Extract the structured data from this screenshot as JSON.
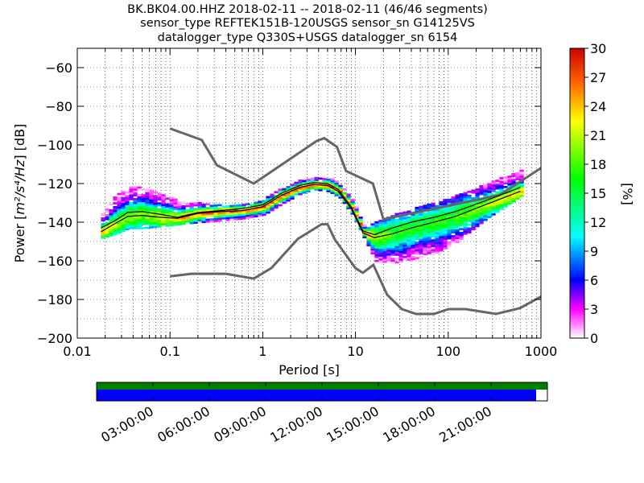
{
  "chart_data": {
    "type": "heatmap",
    "title_lines": [
      "BK.BK04.00.HHZ   2018-02-11 -- 2018-02-11  (46/46 segments)",
      "sensor_type REFTEK151B-120USGS sensor_sn G14125VS",
      "datalogger_type Q330S+USGS datalogger_sn 6154"
    ],
    "xlabel": "Period [s]",
    "ylabel_prefix": "Power [",
    "ylabel_units": "m²/s⁴/Hz",
    "ylabel_suffix": "] [dB]",
    "x_scale": "log",
    "xlim": [
      0.01,
      1000
    ],
    "ylim": [
      -200,
      -50
    ],
    "x_tick_labels": [
      "0.01",
      "0.1",
      "1",
      "10",
      "100",
      "1000"
    ],
    "x_tick_values": [
      0.01,
      0.1,
      1,
      10,
      100,
      1000
    ],
    "y_tick_labels": [
      "−200",
      "−180",
      "−160",
      "−140",
      "−120",
      "−100",
      "−80",
      "−60"
    ],
    "y_tick_values": [
      -200,
      -180,
      -160,
      -140,
      -120,
      -100,
      -80,
      -60
    ],
    "grid": "dotted",
    "colorbar": {
      "label": "[%]",
      "range": [
        0,
        30
      ],
      "tick_labels": [
        "0",
        "3",
        "6",
        "9",
        "12",
        "15",
        "18",
        "21",
        "24",
        "27",
        "30"
      ],
      "tick_values": [
        0,
        3,
        6,
        9,
        12,
        15,
        18,
        21,
        24,
        27,
        30
      ]
    },
    "noise_model_high": {
      "name": "",
      "x": [
        0.1,
        0.22,
        0.32,
        0.8,
        3.8,
        4.6,
        6.3,
        7.9,
        15.4,
        20,
        354.8,
        1000
      ],
      "y": [
        -91.5,
        -97.4,
        -110.5,
        -120.0,
        -98.0,
        -96.5,
        -101.0,
        -113.5,
        -120.0,
        -138.5,
        -126.0,
        -112.0
      ]
    },
    "noise_model_low": {
      "name": "",
      "x": [
        0.1,
        0.17,
        0.4,
        0.8,
        1.24,
        2.4,
        4.3,
        5.0,
        6.0,
        10.0,
        12.0,
        15.6,
        21.9,
        31.6,
        45.0,
        70.0,
        101.0,
        154.0,
        328.0,
        600.0,
        1000.0
      ],
      "y": [
        -168.0,
        -166.7,
        -166.7,
        -169.2,
        -163.7,
        -148.6,
        -141.1,
        -141.1,
        -149.0,
        -163.8,
        -166.2,
        -162.1,
        -177.5,
        -185.0,
        -187.5,
        -187.5,
        -185.0,
        -185.0,
        -187.5,
        -184.4,
        -178.5
      ],
      "x_end": 1000
    },
    "mode_line": {
      "x": [
        0.018,
        0.025,
        0.035,
        0.05,
        0.08,
        0.12,
        0.2,
        0.35,
        0.6,
        1.0,
        1.6,
        2.5,
        3.5,
        5.0,
        6.5,
        9.0,
        12.0,
        16.0,
        25.0,
        40.0,
        70.0,
        120.0,
        250.0,
        600.0
      ],
      "y": [
        -145.0,
        -141.0,
        -137.0,
        -136.5,
        -137.5,
        -138.0,
        -135.5,
        -134.5,
        -134.0,
        -132.0,
        -126.0,
        -122.0,
        -120.5,
        -121.0,
        -124.0,
        -133.0,
        -145.5,
        -148.0,
        -146.0,
        -143.0,
        -140.0,
        -137.0,
        -131.0,
        -124.0
      ]
    },
    "mean_line": {
      "x": [
        0.018,
        0.025,
        0.035,
        0.05,
        0.08,
        0.12,
        0.2,
        0.35,
        0.6,
        1.0,
        1.6,
        2.5,
        3.5,
        5.0,
        6.5,
        9.0,
        12.0,
        16.0,
        25.0,
        40.0,
        70.0,
        120.0,
        250.0,
        600.0
      ],
      "y": [
        -143.0,
        -139.5,
        -135.0,
        -134.5,
        -136.0,
        -137.5,
        -135.0,
        -134.0,
        -133.0,
        -131.0,
        -125.0,
        -121.0,
        -119.5,
        -120.0,
        -123.0,
        -132.0,
        -144.5,
        -146.5,
        -143.0,
        -140.0,
        -137.5,
        -134.5,
        -129.0,
        -122.0
      ]
    },
    "spread": {
      "x": [
        0.018,
        0.025,
        0.035,
        0.05,
        0.08,
        0.12,
        0.2,
        0.35,
        0.6,
        1.0,
        1.6,
        2.5,
        3.5,
        5.0,
        6.5,
        9.0,
        12.0,
        16.0,
        25.0,
        40.0,
        70.0,
        120.0,
        250.0,
        600.0
      ],
      "upper": [
        -136.0,
        -126.0,
        -121.0,
        -122.0,
        -125.0,
        -129.0,
        -130.0,
        -131.0,
        -131.0,
        -128.0,
        -122.0,
        -118.0,
        -116.5,
        -117.0,
        -120.0,
        -128.0,
        -142.0,
        -140.0,
        -136.0,
        -133.0,
        -130.0,
        -126.0,
        -120.0,
        -112.0
      ],
      "lower": [
        -148.0,
        -146.0,
        -143.0,
        -143.0,
        -142.0,
        -141.0,
        -140.0,
        -139.0,
        -138.0,
        -136.0,
        -130.0,
        -125.0,
        -123.0,
        -124.0,
        -127.0,
        -136.0,
        -148.0,
        -160.0,
        -161.0,
        -159.0,
        -156.0,
        -150.0,
        -138.0,
        -126.0
      ]
    },
    "coverage": {
      "time_tick_labels": [
        "03:00:00",
        "06:00:00",
        "09:00:00",
        "12:00:00",
        "15:00:00",
        "18:00:00",
        "21:00:00"
      ],
      "time_tick_hours": [
        3,
        6,
        9,
        12,
        15,
        18,
        21
      ],
      "span_hours": 24,
      "data_fraction": 0.975,
      "top_color": "#008000",
      "bottom_color": "#0000ff"
    }
  }
}
